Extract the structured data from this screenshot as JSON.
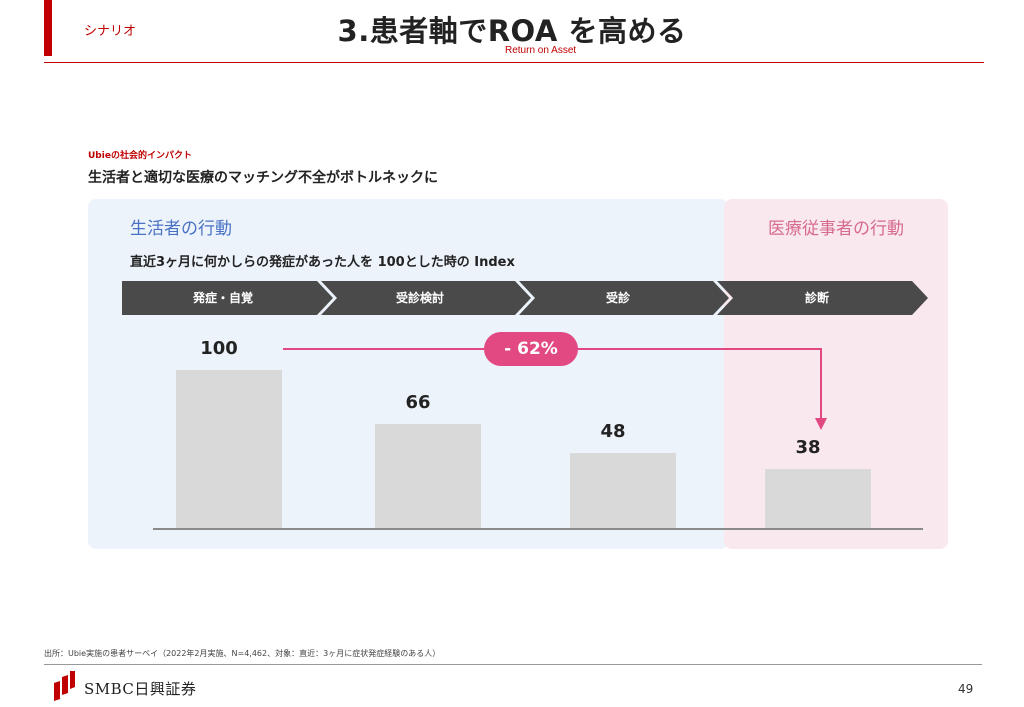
{
  "header": {
    "section_label": "シナリオ",
    "title": "3.患者軸でROA を高める",
    "subtitle": "Return on Asset",
    "accent_color": "#c00000"
  },
  "slide": {
    "impact_label": "Ubieの社会的インパクト",
    "headline": "生活者と適切な医療のマッチング不全がボトルネックに",
    "panel_left_title": "生活者の行動",
    "panel_right_title": "医療従事者の行動",
    "index_note": "直近3ヶ月に何かしらの発症があった人を 100とした時の Index",
    "steps": [
      "発症・自覚",
      "受診検討",
      "受診",
      "診断"
    ],
    "reduction_label": "- 62%"
  },
  "chart_data": {
    "type": "bar",
    "categories": [
      "発症・自覚",
      "受診検討",
      "受診",
      "診断"
    ],
    "values": [
      100,
      66,
      48,
      38
    ],
    "ylim": [
      0,
      100
    ],
    "bar_color": "#d9d9d9",
    "highlight_color": "#e24882"
  },
  "footer": {
    "source": "出所：Ubie実施の患者サーベイ（2022年2月実施、N=4,462、対象：直近：3ヶ月に症状発症経験のある人）",
    "company": "SMBC日興証券",
    "page_number": "49"
  }
}
